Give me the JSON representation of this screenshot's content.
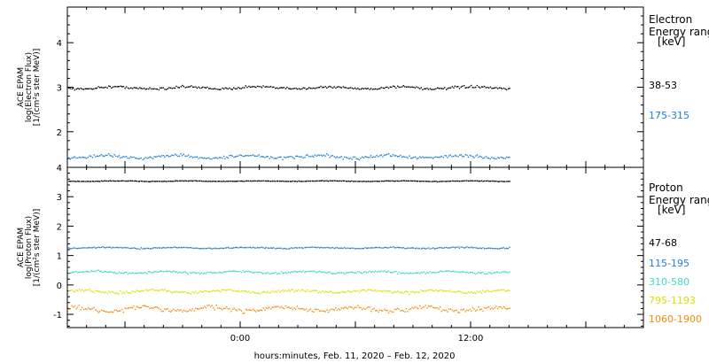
{
  "chart_data": [
    {
      "type": "scatter",
      "ylabel": [
        "ACE EPAM",
        "log(Electron Flux)",
        "[1/(cm²s ster MeV)]"
      ],
      "ylim": [
        1.2,
        4.8
      ],
      "yticks": [
        2,
        3,
        4
      ],
      "legend_title": [
        "Electron",
        "Energy ranges",
        "[keV]"
      ],
      "series": [
        {
          "name": "38-53",
          "color": "#000000",
          "level": 3.0,
          "scatter": 0.04
        },
        {
          "name": "175-315",
          "color": "#1f7fd0",
          "level": 1.45,
          "scatter": 0.05
        }
      ]
    },
    {
      "type": "scatter",
      "ylabel": [
        "ACE EPAM",
        "log(Proton Flux)",
        "[1/(cm²s ster MeV)]"
      ],
      "ylim": [
        -1.45,
        4.0
      ],
      "yticks": [
        -1,
        0,
        1,
        2,
        3,
        4
      ],
      "legend_title": [
        "Proton",
        "Energy ranges",
        "[keV]"
      ],
      "series": [
        {
          "name": "47-68",
          "color": "#000000",
          "level": 3.55,
          "scatter": 0.015
        },
        {
          "name": "115-195",
          "color": "#1f7fd0",
          "level": 1.28,
          "scatter": 0.03
        },
        {
          "name": "310-580",
          "color": "#3cd6cc",
          "level": 0.45,
          "scatter": 0.05
        },
        {
          "name": "795-1193",
          "color": "#d8e000",
          "level": -0.2,
          "scatter": 0.07
        },
        {
          "name": "1060-1900",
          "color": "#f08a10",
          "level": -0.8,
          "scatter": 0.11
        }
      ]
    }
  ],
  "x_axis": {
    "xlim": [
      -9,
      21
    ],
    "data_end": 14,
    "tick_labels": [
      {
        "x": 0,
        "label": "0:00"
      },
      {
        "x": 12,
        "label": "12:00"
      }
    ],
    "xlabel": "hours:minutes, Feb. 11, 2020 – Feb. 12, 2020"
  }
}
